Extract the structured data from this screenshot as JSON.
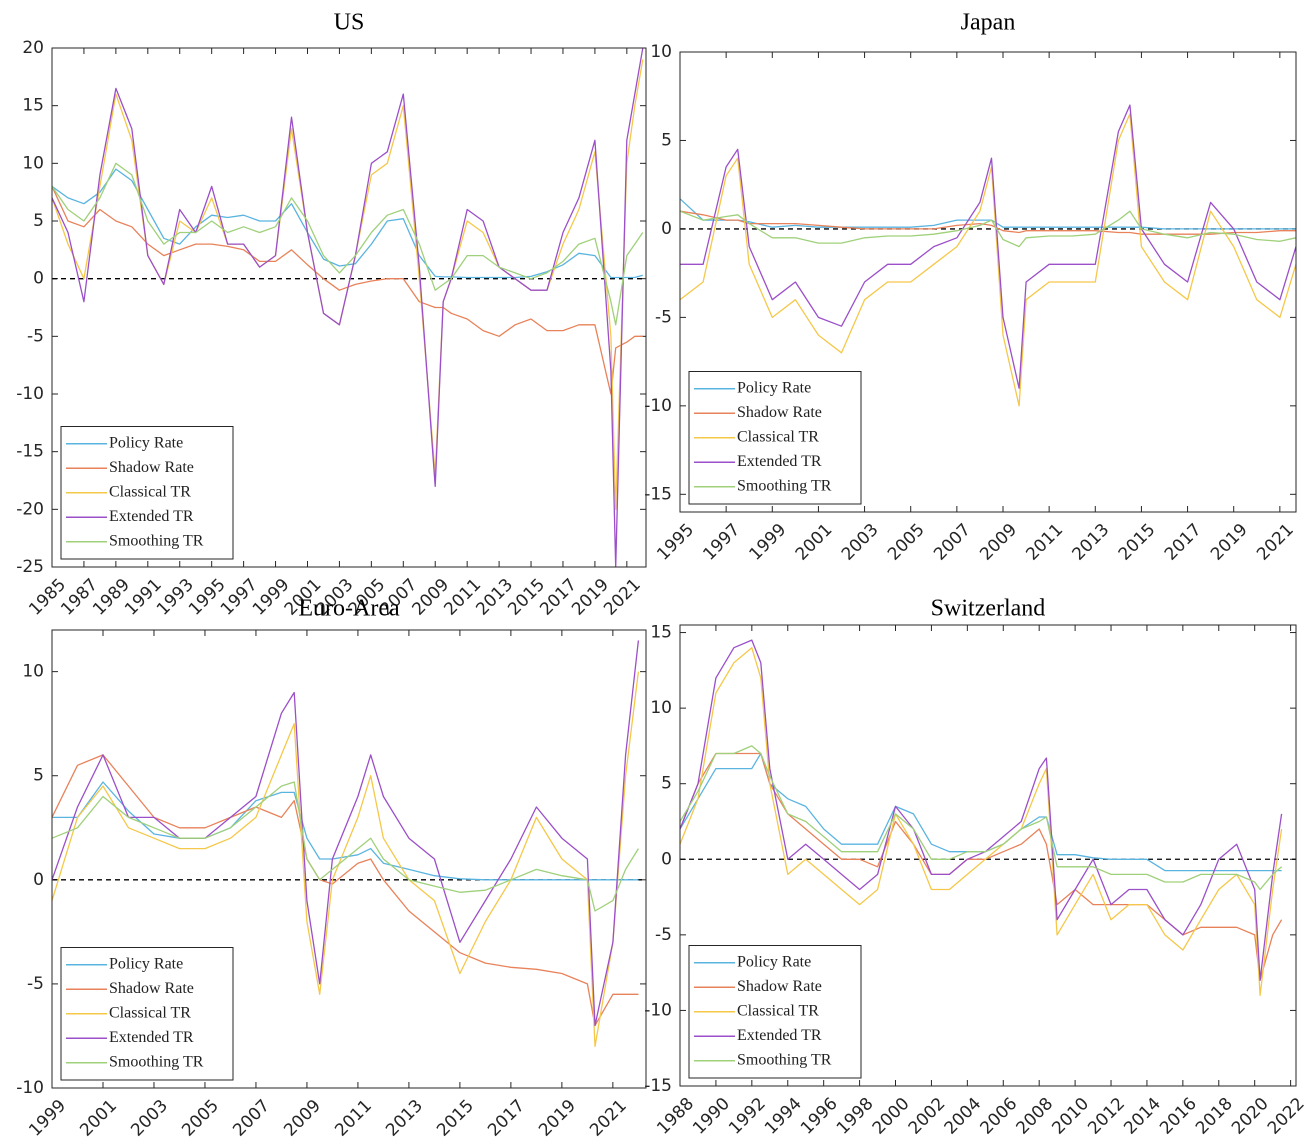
{
  "chart_data": [
    {
      "type": "line",
      "title": "US",
      "legend": "lower left",
      "hline": 0,
      "x": [
        1985,
        1986,
        1987,
        1988,
        1989,
        1990,
        1991,
        1992,
        1993,
        1994,
        1995,
        1996,
        1997,
        1998,
        1999,
        2000,
        2001,
        2002,
        2003,
        2004,
        2005,
        2006,
        2007,
        2008,
        2009,
        2009.5,
        2010,
        2011,
        2012,
        2013,
        2014,
        2015,
        2016,
        2017,
        2018,
        2019,
        2020,
        2020.3,
        2021,
        2021.5,
        2022
      ],
      "xlim": [
        1985,
        2022.2
      ],
      "xticks": [
        1985,
        1987,
        1989,
        1991,
        1993,
        1995,
        1997,
        1999,
        2001,
        2003,
        2005,
        2007,
        2009,
        2011,
        2013,
        2015,
        2017,
        2019,
        2021
      ],
      "ylim": [
        -25,
        20
      ],
      "yticks": [
        -25,
        -20,
        -15,
        -10,
        -5,
        0,
        5,
        10,
        15,
        20
      ],
      "series": [
        {
          "name": "Policy Rate",
          "color": "#5ab4e0",
          "values": [
            8,
            7,
            6.5,
            7.5,
            9.5,
            8.5,
            6,
            3.5,
            3,
            4.5,
            5.5,
            5.3,
            5.5,
            5,
            5,
            6.5,
            4,
            1.7,
            1.1,
            1.3,
            3,
            5,
            5.2,
            2,
            0.2,
            0.15,
            0.15,
            0.1,
            0.1,
            0.1,
            0.1,
            0.2,
            0.6,
            1.2,
            2.2,
            2,
            0.1,
            0.1,
            0.1,
            0.1,
            0.3
          ]
        },
        {
          "name": "Shadow Rate",
          "color": "#e8825a",
          "values": [
            8,
            5,
            4.5,
            6,
            5,
            4.5,
            3,
            2,
            2.5,
            3,
            3,
            2.8,
            2.5,
            1.5,
            1.5,
            2.5,
            1.2,
            0,
            -1,
            -0.5,
            -0.2,
            0,
            0,
            -2,
            -2.5,
            -2.5,
            -3,
            -3.5,
            -4.5,
            -5,
            -4,
            -3.5,
            -4.5,
            -4.5,
            -4,
            -4,
            -10,
            -6,
            -5.5,
            -5,
            -5
          ]
        },
        {
          "name": "Classical TR",
          "color": "#f5c84a",
          "values": [
            7,
            3,
            0,
            8,
            16,
            12,
            2,
            -0.5,
            5,
            4,
            7,
            3,
            3,
            1,
            2,
            13,
            4,
            -3,
            -4,
            2,
            9,
            10,
            15,
            0,
            -17,
            -2,
            0,
            5,
            4,
            1,
            0,
            -1,
            -1,
            3,
            6,
            11,
            -5,
            -20,
            10,
            15,
            19
          ]
        },
        {
          "name": "Extended TR",
          "color": "#9b4fc9",
          "values": [
            7,
            4,
            -2,
            9,
            16.5,
            13,
            2,
            -0.5,
            6,
            4,
            8,
            3,
            3,
            1,
            2,
            14,
            4,
            -3,
            -4,
            2,
            10,
            11,
            16,
            1,
            -18,
            -2,
            0,
            6,
            5,
            1,
            0,
            -1,
            -1,
            4,
            7,
            12,
            -8,
            -25,
            12,
            16,
            20
          ]
        },
        {
          "name": "Smoothing TR",
          "color": "#9fd07a",
          "values": [
            8,
            6,
            5,
            7,
            10,
            9,
            5,
            3,
            4,
            4,
            5,
            4,
            4.5,
            4,
            4.5,
            7,
            5,
            2,
            0.5,
            2,
            4,
            5.5,
            6,
            3,
            -1,
            -0.5,
            0,
            2,
            2,
            1,
            0.5,
            0,
            0.5,
            1.5,
            3,
            3.5,
            -2,
            -4,
            2,
            3,
            4
          ]
        }
      ]
    },
    {
      "type": "line",
      "title": "Japan",
      "legend": "lower left",
      "hline": 0,
      "x": [
        1995,
        1996,
        1997,
        1997.5,
        1998,
        1999,
        2000,
        2001,
        2002,
        2003,
        2004,
        2005,
        2006,
        2007,
        2008,
        2008.5,
        2009,
        2009.7,
        2010,
        2011,
        2012,
        2013,
        2014,
        2014.5,
        2015,
        2016,
        2017,
        2018,
        2019,
        2020,
        2021,
        2021.7
      ],
      "xlim": [
        1995,
        2021.7
      ],
      "xticks": [
        1995,
        1997,
        1999,
        2001,
        2003,
        2005,
        2007,
        2009,
        2011,
        2013,
        2015,
        2017,
        2019,
        2021
      ],
      "ylim": [
        -16,
        10
      ],
      "yticks": [
        -15,
        -10,
        -5,
        0,
        5,
        10
      ],
      "series": [
        {
          "name": "Policy Rate",
          "color": "#5ab4e0",
          "values": [
            1.7,
            0.5,
            0.5,
            0.5,
            0.4,
            0.1,
            0.2,
            0.1,
            0.1,
            0.1,
            0.1,
            0.1,
            0.2,
            0.5,
            0.5,
            0.5,
            0.1,
            0.1,
            0.1,
            0.1,
            0.1,
            0.1,
            0.1,
            0.1,
            0.1,
            0,
            0,
            0,
            0,
            0,
            0,
            0
          ]
        },
        {
          "name": "Shadow Rate",
          "color": "#e8825a",
          "values": [
            1,
            0.8,
            0.5,
            0.5,
            0.3,
            0.3,
            0.3,
            0.2,
            0.1,
            0,
            0,
            0,
            0,
            0.2,
            0.3,
            0.2,
            -0.1,
            -0.2,
            -0.1,
            -0.1,
            -0.1,
            -0.1,
            -0.2,
            -0.2,
            -0.3,
            -0.3,
            -0.3,
            -0.3,
            -0.2,
            -0.2,
            -0.1,
            -0.1
          ]
        },
        {
          "name": "Classical TR",
          "color": "#f5c84a",
          "values": [
            -4,
            -3,
            3,
            4,
            -2,
            -5,
            -4,
            -6,
            -7,
            -4,
            -3,
            -3,
            -2,
            -1,
            1,
            3.5,
            -6,
            -10,
            -4,
            -3,
            -3,
            -3,
            5,
            6.5,
            -1,
            -3,
            -4,
            1,
            -1,
            -4,
            -5,
            -2
          ]
        },
        {
          "name": "Extended TR",
          "color": "#9b4fc9",
          "values": [
            -2,
            -2,
            3.5,
            4.5,
            -1,
            -4,
            -3,
            -5,
            -5.5,
            -3,
            -2,
            -2,
            -1,
            -0.5,
            1.5,
            4,
            -5,
            -9,
            -3,
            -2,
            -2,
            -2,
            5.5,
            7,
            0,
            -2,
            -3,
            1.5,
            0,
            -3,
            -4,
            -1
          ]
        },
        {
          "name": "Smoothing TR",
          "color": "#9fd07a",
          "values": [
            1,
            0.5,
            0.7,
            0.8,
            0.3,
            -0.5,
            -0.5,
            -0.8,
            -0.8,
            -0.5,
            -0.4,
            -0.4,
            -0.3,
            -0.1,
            0.2,
            0.5,
            -0.6,
            -1,
            -0.5,
            -0.4,
            -0.4,
            -0.3,
            0.5,
            1,
            0,
            -0.3,
            -0.5,
            -0.2,
            -0.3,
            -0.6,
            -0.7,
            -0.5
          ]
        }
      ]
    },
    {
      "type": "line",
      "title": "Euro-Area",
      "legend": "lower left",
      "hline": 0,
      "x": [
        1999,
        2000,
        2001,
        2002,
        2003,
        2004,
        2005,
        2006,
        2007,
        2008,
        2008.5,
        2009,
        2009.5,
        2010,
        2011,
        2011.5,
        2012,
        2013,
        2014,
        2015,
        2016,
        2017,
        2018,
        2019,
        2020,
        2020.3,
        2021,
        2021.5,
        2022
      ],
      "xlim": [
        1999,
        2022.3
      ],
      "xticks": [
        1999,
        2001,
        2003,
        2005,
        2007,
        2009,
        2011,
        2013,
        2015,
        2017,
        2019,
        2021
      ],
      "ylim": [
        -10,
        12
      ],
      "yticks": [
        -10,
        -5,
        0,
        5,
        10
      ],
      "series": [
        {
          "name": "Policy Rate",
          "color": "#5ab4e0",
          "values": [
            3,
            3,
            4.7,
            3.3,
            2.2,
            2,
            2,
            2.5,
            3.8,
            4.2,
            4.2,
            2,
            1,
            1,
            1.2,
            1.5,
            0.8,
            0.5,
            0.2,
            0.05,
            0,
            0,
            0,
            0,
            0,
            0,
            0,
            0,
            0
          ]
        },
        {
          "name": "Shadow Rate",
          "color": "#e8825a",
          "values": [
            3,
            5.5,
            6,
            4.5,
            3,
            2.5,
            2.5,
            3,
            3.5,
            3,
            3.8,
            1,
            0,
            -0.2,
            0.8,
            1,
            0,
            -1.5,
            -2.5,
            -3.5,
            -4,
            -4.2,
            -4.3,
            -4.5,
            -5,
            -7,
            -5.5,
            -5.5,
            -5.5
          ]
        },
        {
          "name": "Classical TR",
          "color": "#f5c84a",
          "values": [
            -1,
            3,
            4.5,
            2.5,
            2,
            1.5,
            1.5,
            2,
            3,
            6,
            7.5,
            -2,
            -5.5,
            0,
            3,
            5,
            2,
            0,
            -1,
            -4.5,
            -2,
            0,
            3,
            1,
            0,
            -8,
            -3,
            5,
            10
          ]
        },
        {
          "name": "Extended TR",
          "color": "#9b4fc9",
          "values": [
            0,
            3.5,
            6,
            3,
            3,
            2,
            2,
            3,
            4,
            8,
            9,
            -1,
            -5,
            1,
            4,
            6,
            4,
            2,
            1,
            -3,
            -1,
            1,
            3.5,
            2,
            1,
            -7,
            -3,
            6,
            11.5
          ]
        },
        {
          "name": "Smoothing TR",
          "color": "#9fd07a",
          "values": [
            2,
            2.5,
            4,
            3,
            2.5,
            2,
            2,
            2.5,
            3.5,
            4.5,
            4.7,
            1,
            0,
            0.5,
            1.5,
            2,
            1,
            0,
            -0.3,
            -0.6,
            -0.5,
            0,
            0.5,
            0.2,
            0,
            -1.5,
            -1,
            0.5,
            1.5
          ]
        }
      ]
    },
    {
      "type": "line",
      "title": "Switzerland",
      "legend": "lower left",
      "hline": 0,
      "x": [
        1988,
        1989,
        1990,
        1991,
        1992,
        1992.5,
        1993,
        1994,
        1995,
        1996,
        1997,
        1998,
        1999,
        2000,
        2001,
        2002,
        2003,
        2004,
        2005,
        2006,
        2007,
        2008,
        2008.4,
        2009,
        2010,
        2011,
        2012,
        2013,
        2014,
        2015,
        2016,
        2017,
        2018,
        2019,
        2020,
        2020.3,
        2021,
        2021.5
      ],
      "xlim": [
        1988,
        2022.3
      ],
      "xticks": [
        1988,
        1990,
        1992,
        1994,
        1996,
        1998,
        2000,
        2002,
        2004,
        2006,
        2008,
        2010,
        2012,
        2014,
        2016,
        2018,
        2020,
        2022
      ],
      "ylim": [
        -15,
        15.5
      ],
      "yticks": [
        -15,
        -10,
        -5,
        0,
        5,
        10,
        15
      ],
      "series": [
        {
          "name": "Policy Rate",
          "color": "#5ab4e0",
          "values": [
            2,
            4,
            6,
            6,
            6,
            7,
            5,
            4,
            3.5,
            2,
            1,
            1,
            1,
            3.5,
            3,
            1,
            0.5,
            0.5,
            0.5,
            1,
            2,
            2.8,
            2.8,
            0.3,
            0.3,
            0.1,
            0,
            0,
            0,
            -0.75,
            -0.75,
            -0.75,
            -0.75,
            -0.75,
            -0.75,
            -0.75,
            -0.75,
            -0.75
          ]
        },
        {
          "name": "Shadow Rate",
          "color": "#e8825a",
          "values": [
            2,
            5,
            7,
            7,
            7,
            7,
            5,
            3,
            2,
            1,
            0,
            0,
            -0.5,
            2.5,
            1,
            -1,
            -1,
            0,
            0,
            0.5,
            1,
            2,
            1,
            -3,
            -2,
            -3,
            -3,
            -3,
            -3,
            -4,
            -5,
            -4.5,
            -4.5,
            -4.5,
            -5,
            -8,
            -5,
            -4
          ]
        },
        {
          "name": "Classical TR",
          "color": "#f5c84a",
          "values": [
            1,
            4,
            11,
            13,
            14,
            12,
            5,
            -1,
            0,
            -1,
            -2,
            -3,
            -2,
            3,
            1,
            -2,
            -2,
            -1,
            0,
            1,
            2,
            5,
            6,
            -5,
            -3,
            -1,
            -4,
            -3,
            -3,
            -5,
            -6,
            -4,
            -2,
            -1,
            -3,
            -9,
            -2,
            2
          ]
        },
        {
          "name": "Extended TR",
          "color": "#9b4fc9",
          "values": [
            2,
            5,
            12,
            14,
            14.5,
            13,
            6,
            0,
            1,
            0,
            -1,
            -2,
            -1,
            3.5,
            2,
            -1,
            -1,
            0,
            0.5,
            1.5,
            2.5,
            6,
            6.7,
            -4,
            -2,
            0,
            -3,
            -2,
            -2,
            -4,
            -5,
            -3,
            0,
            1,
            -2,
            -8,
            -1,
            3
          ]
        },
        {
          "name": "Smoothing TR",
          "color": "#9fd07a",
          "values": [
            2.5,
            4.5,
            7,
            7,
            7.5,
            7,
            5.5,
            3,
            2.5,
            1.5,
            0.5,
            0.5,
            0.5,
            3,
            2,
            0,
            0,
            0.5,
            0.5,
            1,
            2,
            2.5,
            2.8,
            -0.5,
            -0.5,
            -0.5,
            -1,
            -1,
            -1,
            -1.5,
            -1.5,
            -1,
            -1,
            -1,
            -1.5,
            -2,
            -1,
            -0.5
          ]
        }
      ]
    }
  ]
}
